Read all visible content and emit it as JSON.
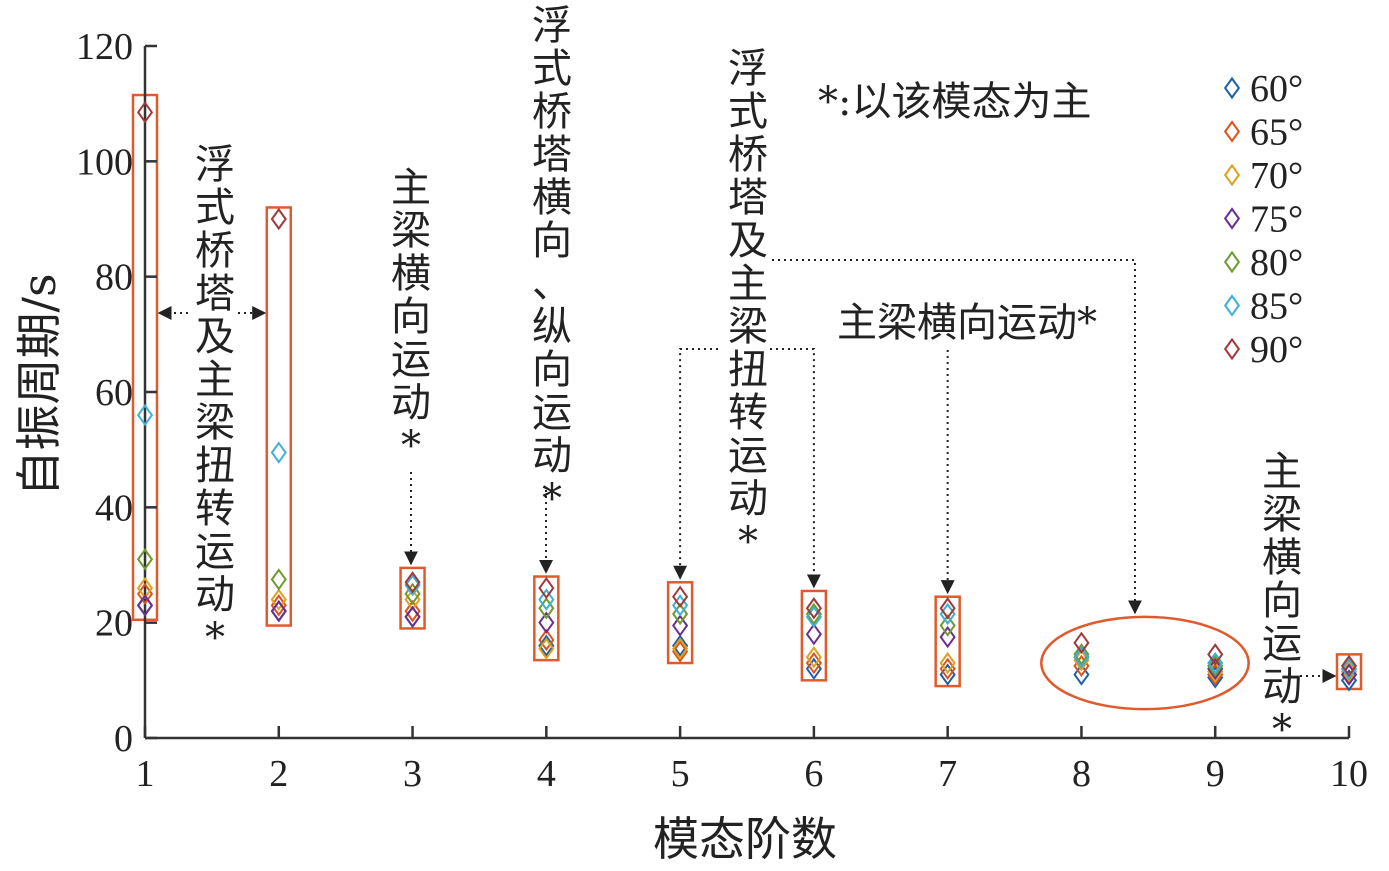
{
  "chart_data": {
    "type": "scatter",
    "xlabel": "模态阶数",
    "ylabel": "自振周期/s",
    "xlim": [
      1,
      10
    ],
    "ylim": [
      0,
      120
    ],
    "x_ticks": [
      1,
      2,
      3,
      4,
      5,
      6,
      7,
      8,
      9,
      10
    ],
    "y_ticks": [
      0,
      20,
      40,
      60,
      80,
      100,
      120
    ],
    "legend_position": "top-right",
    "series": [
      {
        "name": "60°",
        "color": "#1f5fa8",
        "x": [
          1,
          2,
          3,
          4,
          5,
          6,
          7,
          8,
          9,
          10
        ],
        "y": [
          23,
          22,
          21,
          16,
          16,
          12,
          11,
          11,
          10.5,
          10
        ]
      },
      {
        "name": "65°",
        "color": "#d9541f",
        "x": [
          1,
          2,
          3,
          4,
          5,
          6,
          7,
          8,
          9,
          10
        ],
        "y": [
          25,
          23,
          22,
          17,
          15,
          13,
          12,
          12.5,
          11,
          11
        ]
      },
      {
        "name": "70°",
        "color": "#e0a020",
        "x": [
          1,
          2,
          3,
          4,
          5,
          6,
          7,
          8,
          9,
          10
        ],
        "y": [
          26,
          24,
          24,
          15.5,
          15.5,
          14,
          13,
          13.5,
          11.5,
          11.5
        ]
      },
      {
        "name": "75°",
        "color": "#6a2e8f",
        "x": [
          1,
          2,
          3,
          4,
          5,
          6,
          7,
          8,
          9,
          10
        ],
        "y": [
          23,
          22,
          21,
          20,
          19.5,
          18,
          17.5,
          14,
          12,
          11
        ]
      },
      {
        "name": "80°",
        "color": "#6f9a2e",
        "x": [
          1,
          2,
          3,
          4,
          5,
          6,
          7,
          8,
          9,
          10
        ],
        "y": [
          31,
          27.5,
          25,
          22.5,
          21.5,
          21.5,
          19.5,
          14.5,
          12.5,
          12
        ]
      },
      {
        "name": "85°",
        "color": "#3fb0d6",
        "x": [
          1,
          2,
          3,
          4,
          5,
          6,
          7,
          8,
          9,
          10
        ],
        "y": [
          56,
          49.5,
          26.5,
          24,
          23,
          21,
          21.5,
          14,
          13,
          12
        ]
      },
      {
        "name": "90°",
        "color": "#a03a3a",
        "x": [
          1,
          2,
          3,
          4,
          5,
          6,
          7,
          8,
          9,
          10
        ],
        "y": [
          108.5,
          90,
          27,
          26,
          24.5,
          22.5,
          22.5,
          16.5,
          14.5,
          12.5
        ]
      }
    ],
    "annotations": [
      {
        "id": "ann1",
        "text": "浮式桥塔及主梁扭转运动*"
      },
      {
        "id": "ann2",
        "text": "主梁横向运动*"
      },
      {
        "id": "ann3",
        "text": "浮式桥塔横向、纵向运动*"
      },
      {
        "id": "ann4",
        "text": "浮式桥塔及主梁扭转运动*"
      },
      {
        "id": "ann5",
        "text": "主梁横向运动*"
      },
      {
        "id": "ann6",
        "text": "主梁横向运动*"
      },
      {
        "id": "note",
        "text": "*:以该模态为主"
      }
    ],
    "highlight_boxes": [
      {
        "x": 1,
        "y_range": [
          20.5,
          111.5
        ]
      },
      {
        "x": 2,
        "y_range": [
          19.5,
          92
        ]
      },
      {
        "x": 3,
        "y_range": [
          19,
          29.5
        ]
      },
      {
        "x": 4,
        "y_range": [
          13.5,
          28
        ]
      },
      {
        "x": 5,
        "y_range": [
          13,
          27
        ]
      },
      {
        "x": 6,
        "y_range": [
          10,
          25.5
        ]
      },
      {
        "x": 7,
        "y_range": [
          9,
          24.5
        ]
      },
      {
        "x": 10,
        "y_range": [
          8.5,
          14.5
        ]
      }
    ],
    "highlight_ellipse": {
      "x_range": [
        7.7,
        9.25
      ],
      "y_range": [
        5,
        21
      ]
    },
    "accent_color": "#e05a2b"
  }
}
